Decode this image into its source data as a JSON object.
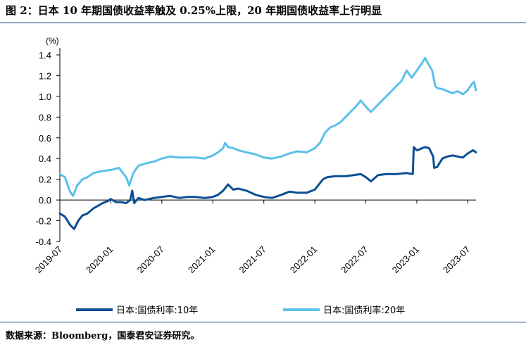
{
  "title": "图 2：日本 10 年期国债收益率触及 0.25%上限，20 年期国债收益率上行明显",
  "source": "数据来源：Bloomberg，国泰君安证券研究。",
  "colors": {
    "series10": "#0c4f94",
    "series20": "#5bc0ea",
    "rule": "#1a3a7a"
  },
  "chart_data": {
    "type": "line",
    "unit": "(%)",
    "ylim": [
      -0.4,
      1.4
    ],
    "yticks": [
      "-0.4",
      "-0.2",
      "0.0",
      "0.2",
      "0.4",
      "0.6",
      "0.8",
      "1.0",
      "1.2",
      "1.4"
    ],
    "xlim": [
      2019.5,
      2023.58
    ],
    "xticks": [
      "2019-07",
      "2020-01",
      "2020-07",
      "2021-01",
      "2021-07",
      "2022-01",
      "2022-07",
      "2023-01",
      "2023-07"
    ],
    "legend": "bottom",
    "series": [
      {
        "name": "日本:国债利率:10年",
        "points": [
          [
            2019.5,
            -0.13
          ],
          [
            2019.55,
            -0.16
          ],
          [
            2019.6,
            -0.24
          ],
          [
            2019.64,
            -0.28
          ],
          [
            2019.68,
            -0.2
          ],
          [
            2019.72,
            -0.15
          ],
          [
            2019.77,
            -0.13
          ],
          [
            2019.83,
            -0.08
          ],
          [
            2019.92,
            -0.03
          ],
          [
            2019.97,
            -0.01
          ],
          [
            2020.0,
            0.01
          ],
          [
            2020.05,
            -0.02
          ],
          [
            2020.1,
            -0.02
          ],
          [
            2020.15,
            -0.03
          ],
          [
            2020.19,
            0.0
          ],
          [
            2020.21,
            0.09
          ],
          [
            2020.23,
            -0.03
          ],
          [
            2020.27,
            0.02
          ],
          [
            2020.33,
            0.0
          ],
          [
            2020.42,
            0.02
          ],
          [
            2020.5,
            0.03
          ],
          [
            2020.58,
            0.04
          ],
          [
            2020.67,
            0.02
          ],
          [
            2020.75,
            0.03
          ],
          [
            2020.83,
            0.03
          ],
          [
            2020.92,
            0.02
          ],
          [
            2021.0,
            0.03
          ],
          [
            2021.05,
            0.05
          ],
          [
            2021.1,
            0.09
          ],
          [
            2021.15,
            0.15
          ],
          [
            2021.2,
            0.1
          ],
          [
            2021.25,
            0.11
          ],
          [
            2021.33,
            0.09
          ],
          [
            2021.42,
            0.05
          ],
          [
            2021.5,
            0.03
          ],
          [
            2021.58,
            0.02
          ],
          [
            2021.67,
            0.05
          ],
          [
            2021.75,
            0.08
          ],
          [
            2021.83,
            0.07
          ],
          [
            2021.92,
            0.07
          ],
          [
            2022.0,
            0.1
          ],
          [
            2022.04,
            0.15
          ],
          [
            2022.08,
            0.2
          ],
          [
            2022.12,
            0.22
          ],
          [
            2022.2,
            0.23
          ],
          [
            2022.3,
            0.23
          ],
          [
            2022.38,
            0.24
          ],
          [
            2022.45,
            0.25
          ],
          [
            2022.5,
            0.22
          ],
          [
            2022.55,
            0.18
          ],
          [
            2022.62,
            0.24
          ],
          [
            2022.7,
            0.25
          ],
          [
            2022.8,
            0.25
          ],
          [
            2022.9,
            0.26
          ],
          [
            2022.96,
            0.25
          ],
          [
            2022.97,
            0.51
          ],
          [
            2023.0,
            0.48
          ],
          [
            2023.03,
            0.49
          ],
          [
            2023.05,
            0.5
          ],
          [
            2023.08,
            0.51
          ],
          [
            2023.12,
            0.5
          ],
          [
            2023.16,
            0.42
          ],
          [
            2023.17,
            0.31
          ],
          [
            2023.2,
            0.32
          ],
          [
            2023.25,
            0.4
          ],
          [
            2023.3,
            0.42
          ],
          [
            2023.35,
            0.43
          ],
          [
            2023.4,
            0.42
          ],
          [
            2023.45,
            0.41
          ],
          [
            2023.5,
            0.45
          ],
          [
            2023.55,
            0.48
          ],
          [
            2023.58,
            0.46
          ]
        ]
      },
      {
        "name": "日本:国债利率:20年",
        "points": [
          [
            2019.5,
            0.25
          ],
          [
            2019.55,
            0.22
          ],
          [
            2019.6,
            0.08
          ],
          [
            2019.63,
            0.04
          ],
          [
            2019.67,
            0.14
          ],
          [
            2019.72,
            0.2
          ],
          [
            2019.77,
            0.22
          ],
          [
            2019.83,
            0.26
          ],
          [
            2019.92,
            0.28
          ],
          [
            2020.0,
            0.29
          ],
          [
            2020.08,
            0.31
          ],
          [
            2020.15,
            0.22
          ],
          [
            2020.18,
            0.14
          ],
          [
            2020.22,
            0.26
          ],
          [
            2020.27,
            0.33
          ],
          [
            2020.33,
            0.35
          ],
          [
            2020.42,
            0.37
          ],
          [
            2020.5,
            0.4
          ],
          [
            2020.58,
            0.42
          ],
          [
            2020.67,
            0.41
          ],
          [
            2020.75,
            0.41
          ],
          [
            2020.83,
            0.41
          ],
          [
            2020.92,
            0.4
          ],
          [
            2021.0,
            0.43
          ],
          [
            2021.05,
            0.46
          ],
          [
            2021.1,
            0.5
          ],
          [
            2021.12,
            0.55
          ],
          [
            2021.15,
            0.51
          ],
          [
            2021.2,
            0.5
          ],
          [
            2021.25,
            0.48
          ],
          [
            2021.33,
            0.46
          ],
          [
            2021.42,
            0.44
          ],
          [
            2021.5,
            0.41
          ],
          [
            2021.58,
            0.4
          ],
          [
            2021.67,
            0.42
          ],
          [
            2021.75,
            0.45
          ],
          [
            2021.83,
            0.47
          ],
          [
            2021.92,
            0.46
          ],
          [
            2022.0,
            0.5
          ],
          [
            2022.05,
            0.55
          ],
          [
            2022.1,
            0.65
          ],
          [
            2022.15,
            0.7
          ],
          [
            2022.2,
            0.72
          ],
          [
            2022.25,
            0.75
          ],
          [
            2022.3,
            0.8
          ],
          [
            2022.35,
            0.85
          ],
          [
            2022.4,
            0.9
          ],
          [
            2022.45,
            0.96
          ],
          [
            2022.5,
            0.9
          ],
          [
            2022.55,
            0.85
          ],
          [
            2022.6,
            0.9
          ],
          [
            2022.65,
            0.95
          ],
          [
            2022.7,
            1.0
          ],
          [
            2022.75,
            1.05
          ],
          [
            2022.8,
            1.1
          ],
          [
            2022.85,
            1.15
          ],
          [
            2022.9,
            1.25
          ],
          [
            2022.95,
            1.18
          ],
          [
            2023.0,
            1.25
          ],
          [
            2023.05,
            1.32
          ],
          [
            2023.08,
            1.37
          ],
          [
            2023.12,
            1.3
          ],
          [
            2023.15,
            1.25
          ],
          [
            2023.18,
            1.1
          ],
          [
            2023.2,
            1.08
          ],
          [
            2023.25,
            1.07
          ],
          [
            2023.3,
            1.05
          ],
          [
            2023.35,
            1.03
          ],
          [
            2023.4,
            1.05
          ],
          [
            2023.45,
            1.02
          ],
          [
            2023.5,
            1.06
          ],
          [
            2023.54,
            1.12
          ],
          [
            2023.56,
            1.14
          ],
          [
            2023.58,
            1.06
          ]
        ]
      }
    ]
  }
}
